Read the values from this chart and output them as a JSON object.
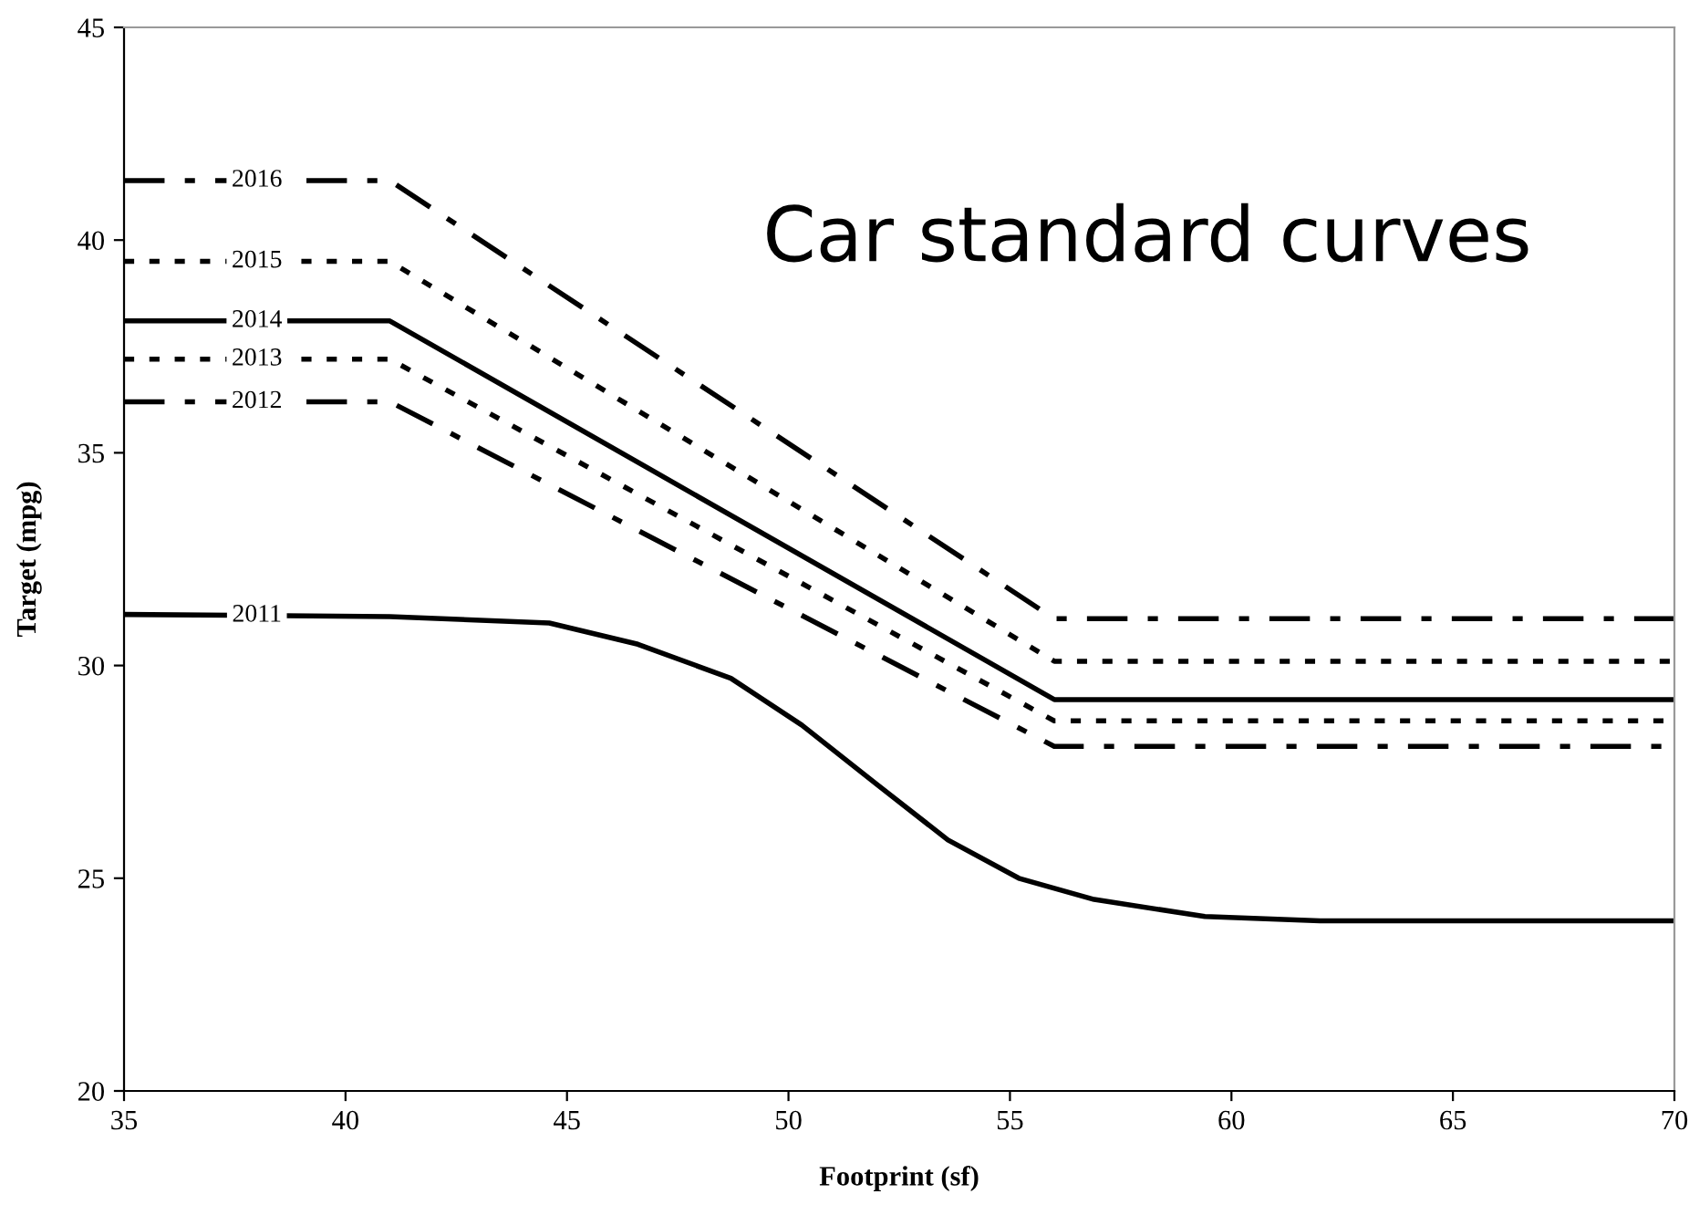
{
  "chart_data": {
    "type": "line",
    "title": "Car standard curves",
    "xlabel": "Footprint (sf)",
    "ylabel": "Target (mpg)",
    "xlim": [
      35,
      70
    ],
    "xticks": [
      35,
      40,
      45,
      50,
      55,
      60,
      65,
      70
    ],
    "ylim": [
      20,
      45
    ],
    "yticks": [
      20,
      25,
      30,
      35,
      40,
      45
    ],
    "grid": false,
    "legend": false,
    "series": [
      {
        "name": "2016",
        "color": "#000000",
        "line_style": "dashed",
        "x": [
          35,
          41,
          56,
          70
        ],
        "values": [
          41.4,
          41.4,
          31.1,
          31.1
        ]
      },
      {
        "name": "2015",
        "color": "#000000",
        "line_style": "dotted",
        "x": [
          35,
          41,
          56,
          70
        ],
        "values": [
          39.5,
          39.5,
          30.1,
          30.1
        ]
      },
      {
        "name": "2014",
        "color": "#000000",
        "line_style": "solid",
        "x": [
          35,
          41,
          56,
          70
        ],
        "values": [
          38.1,
          38.1,
          29.2,
          29.2
        ]
      },
      {
        "name": "2013",
        "color": "#000000",
        "line_style": "dotted",
        "x": [
          35,
          41,
          56,
          70
        ],
        "values": [
          37.2,
          37.2,
          28.7,
          28.7
        ]
      },
      {
        "name": "2012",
        "color": "#000000",
        "line_style": "dashed",
        "x": [
          35,
          41,
          56,
          70
        ],
        "values": [
          36.2,
          36.2,
          28.1,
          28.1
        ]
      },
      {
        "name": "2011",
        "color": "#000000",
        "line_style": "solid",
        "x": [
          35,
          41,
          44.6,
          46.6,
          48.7,
          50.3,
          52,
          53.6,
          55.2,
          56.9,
          59.4,
          62,
          65,
          70
        ],
        "values": [
          31.2,
          31.15,
          31.0,
          30.5,
          29.7,
          28.6,
          27.2,
          25.9,
          25.0,
          24.5,
          24.1,
          24.0,
          24.0,
          24.0
        ]
      }
    ]
  }
}
